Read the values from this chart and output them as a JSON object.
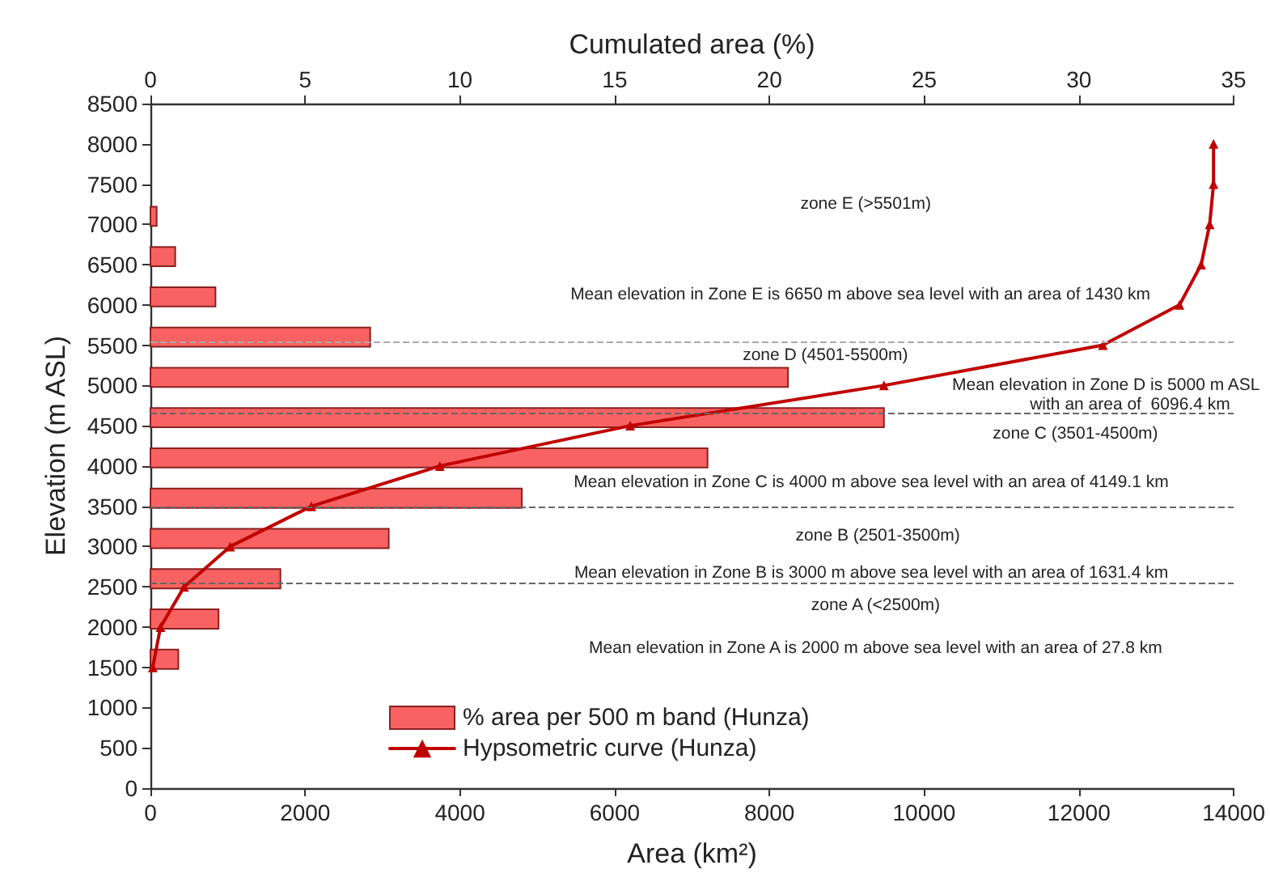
{
  "chart_data": {
    "type": "line",
    "orientation": "horizontal",
    "xlabel": "Area (km²)",
    "x2label": "Cumulated area (%)",
    "ylabel": "Elevation (m ASL)",
    "xlim": [
      0,
      14000
    ],
    "xticks": [
      0,
      2000,
      4000,
      6000,
      8000,
      10000,
      12000,
      14000
    ],
    "x2lim": [
      0,
      35
    ],
    "x2ticks": [
      0,
      5,
      10,
      15,
      20,
      25,
      30,
      35
    ],
    "ylim": [
      0,
      8500
    ],
    "yticks": [
      0,
      500,
      1000,
      1500,
      2000,
      2500,
      3000,
      3500,
      4000,
      4500,
      5000,
      5500,
      6000,
      6500,
      7000,
      7500,
      8000,
      8500
    ],
    "grid": false,
    "legend": "bottom left",
    "marker": "triangle",
    "line_style": "solid",
    "series": [
      {
        "type": "bar",
        "axis": "x2",
        "name": "% area per 500 m band (Hunza)",
        "color": "#f86262",
        "x": [
          1600,
          2100,
          2600,
          3100,
          3600,
          4100,
          4600,
          5100,
          5600,
          6100,
          6600,
          7100
        ],
        "values": [
          0.9,
          2.2,
          4.2,
          7.7,
          12.0,
          18.0,
          23.7,
          20.6,
          7.1,
          2.1,
          0.8,
          0.2
        ]
      },
      {
        "name": "Hypsometric curve (Hunza)",
        "color": "#c00000",
        "x": [
          1500,
          2000,
          2500,
          3000,
          3500,
          4000,
          4500,
          5000,
          5500,
          6000,
          6500,
          7000,
          7500,
          8000
        ],
        "values": [
          30,
          130,
          435,
          1030,
          2080,
          3740,
          6200,
          9480,
          12310,
          13300,
          13580,
          13690,
          13740,
          13740
        ]
      }
    ],
    "ref_lines": [
      {
        "axis": "y",
        "value": 5550,
        "color": "#aaaaaa",
        "line_style": "dashed"
      },
      {
        "axis": "y",
        "value": 4650,
        "color": "#666666",
        "line_style": "dashed"
      },
      {
        "axis": "y",
        "value": 3500,
        "color": "#666666",
        "line_style": "dashed"
      },
      {
        "axis": "y",
        "value": 2550,
        "color": "#666666",
        "line_style": "dashed"
      }
    ],
    "annotations": [
      "zone E (>5501m)",
      "Mean elevation in Zone E is 6650 m above sea level with an area of 1430 km",
      "zone D (4501-5500m)",
      "Mean elevation in Zone D is 5000 m ASL",
      "with an area of  6096.4 km",
      "zone C (3501-4500m)",
      "Mean elevation in Zone C is 4000 m above sea level with an area of 4149.1 km",
      "zone B (2501-3500m)",
      "Mean elevation in Zone B is 3000 m above sea level with an area of 1631.4 km",
      "zone A (<2500m)",
      "Mean elevation in Zone A is 2000 m above sea level with an area of 27.8 km"
    ]
  }
}
